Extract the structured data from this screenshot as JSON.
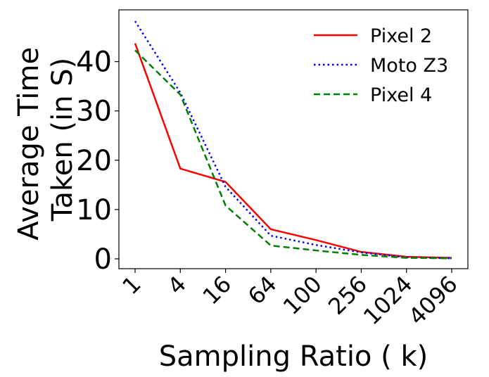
{
  "chart_data": {
    "type": "line",
    "title": "",
    "xlabel": "Sampling Ratio ( k)",
    "ylabel_lines": [
      "Average Time",
      "Taken (in S)"
    ],
    "categories": [
      "1",
      "4",
      "16",
      "64",
      "100",
      "256",
      "1024",
      "4096"
    ],
    "y_ticks": [
      0,
      10,
      20,
      30,
      40
    ],
    "ylim": [
      -2,
      50.5
    ],
    "grid": false,
    "legend_position": "top-right",
    "series": [
      {
        "name": "Pixel 2",
        "color": "#ff0000",
        "style": "solid",
        "values": [
          43.7,
          18.3,
          15.6,
          6.0,
          3.8,
          1.4,
          0.4,
          0.2
        ]
      },
      {
        "name": "Moto Z3",
        "color": "#0000ff",
        "style": "dotted",
        "values": [
          48.2,
          33.7,
          14.6,
          4.7,
          2.8,
          1.3,
          0.3,
          0.1
        ]
      },
      {
        "name": "Pixel 4",
        "color": "#008000",
        "style": "dashed",
        "values": [
          42.3,
          33.3,
          10.8,
          2.7,
          1.7,
          0.8,
          0.2,
          0.1
        ]
      }
    ]
  }
}
